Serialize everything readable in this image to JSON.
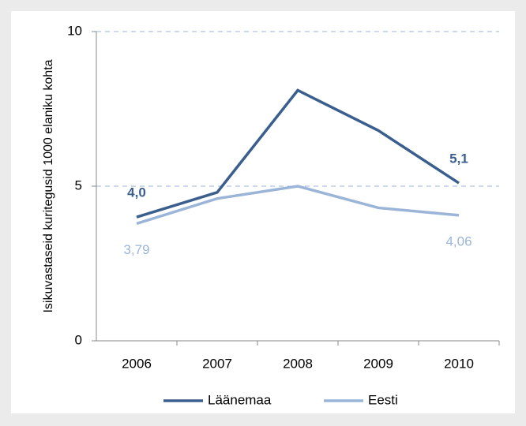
{
  "chart_data": {
    "type": "line",
    "y_label": "Isikuvastaseid kuritegusid 1000 elaniku kohta",
    "categories": [
      "2006",
      "2007",
      "2008",
      "2009",
      "2010"
    ],
    "series": [
      {
        "name": "Läänemaa",
        "color": "#3a5f8e",
        "values": [
          4.0,
          4.8,
          8.1,
          6.8,
          5.1
        ],
        "value_labels": [
          "4,0",
          null,
          null,
          null,
          "5,1"
        ]
      },
      {
        "name": "Eesti",
        "color": "#9ab5d8",
        "values": [
          3.79,
          4.6,
          5.0,
          4.3,
          4.06
        ],
        "value_labels": [
          "3,79",
          null,
          null,
          null,
          "4,06"
        ]
      }
    ],
    "ylim": [
      0,
      10
    ],
    "yticks": [
      0,
      5,
      10
    ],
    "grid": true,
    "legend": "bottom"
  }
}
